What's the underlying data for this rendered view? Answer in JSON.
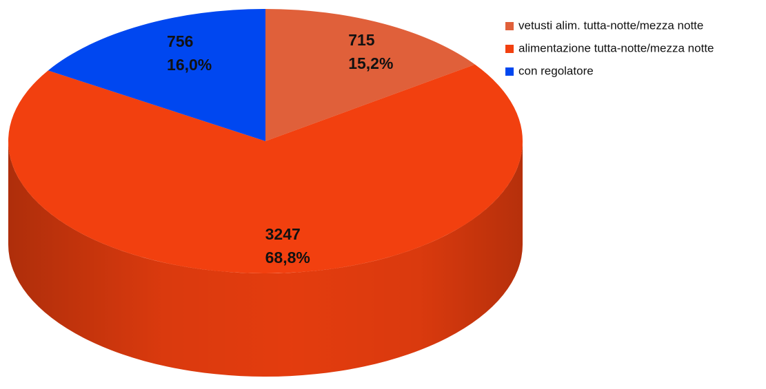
{
  "chart_data": {
    "type": "pie3d",
    "categories": [
      "vetusti alim. tutta-notte/mezza notte",
      "alimentazione tutta-notte/mezza notte",
      "con regolatore"
    ],
    "values": [
      715,
      3247,
      756
    ],
    "percentages": [
      15.2,
      68.8,
      16.0
    ],
    "percentage_labels": [
      "15,2%",
      "68,8%",
      "16,0%"
    ],
    "colors": [
      "#e0603a",
      "#f2400f",
      "#0047f0"
    ],
    "legend": "top-right"
  }
}
